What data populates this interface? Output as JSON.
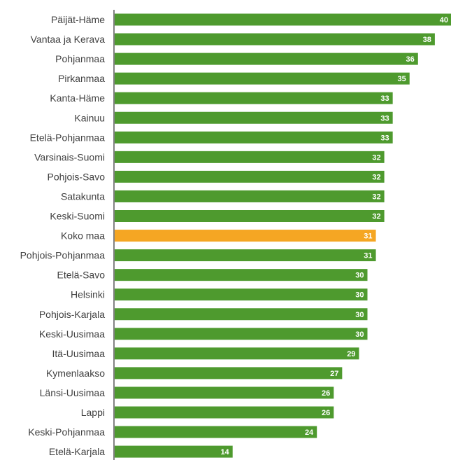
{
  "chart_data": {
    "type": "bar",
    "orientation": "horizontal",
    "title": "",
    "xlabel": "",
    "ylabel": "",
    "categories": [
      "Päijät-Häme",
      "Vantaa ja Kerava",
      "Pohjanmaa",
      "Pirkanmaa",
      "Kanta-Häme",
      "Kainuu",
      "Etelä-Pohjanmaa",
      "Varsinais-Suomi",
      "Pohjois-Savo",
      "Satakunta",
      "Keski-Suomi",
      "Koko maa",
      "Pohjois-Pohjanmaa",
      "Etelä-Savo",
      "Helsinki",
      "Pohjois-Karjala",
      "Keski-Uusimaa",
      "Itä-Uusimaa",
      "Kymenlaakso",
      "Länsi-Uusimaa",
      "Lappi",
      "Keski-Pohjanmaa",
      "Etelä-Karjala"
    ],
    "values": [
      40,
      38,
      36,
      35,
      33,
      33,
      33,
      32,
      32,
      32,
      32,
      31,
      31,
      30,
      30,
      30,
      30,
      29,
      27,
      26,
      26,
      24,
      14
    ],
    "value_labels": [
      "40",
      "38",
      "36",
      "35",
      "33",
      "33",
      "33",
      "32",
      "32",
      "32",
      "32",
      "31",
      "31",
      "30",
      "30",
      "30",
      "30",
      "29",
      "27",
      "26",
      "26",
      "24",
      "14"
    ],
    "highlight_category": "Koko maa",
    "xlim": [
      0,
      40
    ],
    "grid": false,
    "legend": "none",
    "colors": {
      "bar": "#4e9a2e",
      "highlight": "#f5a623",
      "axis": "#595959",
      "label": "#404040",
      "value_label": "#ffffff"
    }
  }
}
